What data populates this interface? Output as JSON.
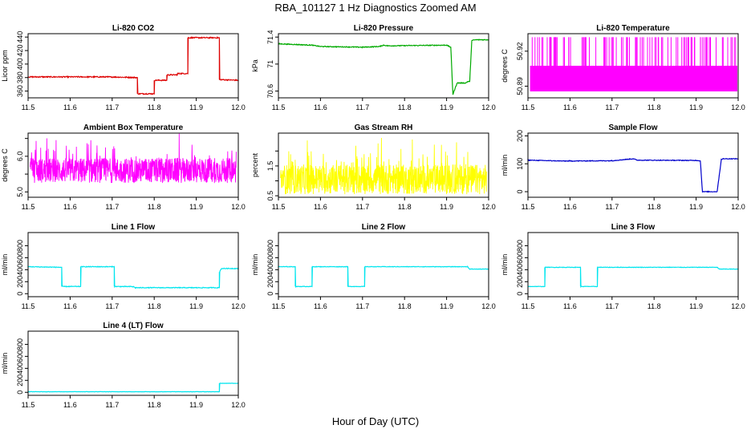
{
  "figure": {
    "title": "RBA_101127  1 Hz Diagnostics Zoomed AM",
    "xlabel": "Hour of Day (UTC)"
  },
  "chart_data": [
    {
      "type": "line",
      "title": "Li-820 CO2",
      "ylabel": "Licor ppm",
      "color": "#dd0000",
      "xlim": [
        11.5,
        12.0
      ],
      "ylim": [
        350,
        445
      ],
      "yticks": [
        360,
        380,
        400,
        420,
        440
      ],
      "xticks": [
        11.5,
        11.6,
        11.7,
        11.8,
        11.9,
        12.0
      ],
      "noise": 0.8,
      "x": [
        11.5,
        11.69,
        11.76,
        11.76,
        11.8,
        11.8,
        11.83,
        11.83,
        11.855,
        11.855,
        11.88,
        11.88,
        11.955,
        11.955,
        12.0
      ],
      "y": [
        381,
        381,
        380,
        356,
        356,
        376,
        376,
        384,
        384,
        386,
        386,
        439,
        439,
        377,
        376
      ]
    },
    {
      "type": "line",
      "title": "Li-820 Pressure",
      "ylabel": "kPa",
      "color": "#00aa00",
      "xlim": [
        11.5,
        12.0
      ],
      "ylim": [
        70.5,
        71.45
      ],
      "yticks": [
        70.6,
        71.0,
        71.4
      ],
      "xticks": [
        11.5,
        11.6,
        11.7,
        11.8,
        11.9,
        12.0
      ],
      "noise": 0.006,
      "x": [
        11.5,
        11.58,
        11.6,
        11.7,
        11.74,
        11.75,
        11.76,
        11.9,
        11.91,
        11.915,
        11.925,
        11.945,
        11.95,
        11.955,
        11.96,
        11.97,
        12.0
      ],
      "y": [
        71.3,
        71.28,
        71.26,
        71.25,
        71.26,
        71.28,
        71.27,
        71.28,
        71.25,
        70.55,
        70.72,
        70.72,
        70.74,
        70.74,
        71.35,
        71.36,
        71.36
      ]
    },
    {
      "type": "band",
      "title": "Li-820 Temperature",
      "ylabel": "degrees C",
      "color": "#ff00ff",
      "xlim": [
        11.5,
        12.0
      ],
      "ylim": [
        50.88,
        50.935
      ],
      "yticks": [
        50.89,
        50.92
      ],
      "ytick_labels": [
        "50.89",
        "50.92"
      ],
      "xticks": [
        11.5,
        11.6,
        11.7,
        11.8,
        11.9,
        12.0
      ],
      "base": [
        50.8855,
        50.9075
      ],
      "spike_top": 50.932,
      "spikes": 95
    },
    {
      "type": "noisy",
      "title": "Ambient Box Temperature",
      "ylabel": "degrees C",
      "color": "#ff00ff",
      "xlim": [
        11.5,
        12.0
      ],
      "ylim": [
        4.85,
        6.65
      ],
      "yticks": [
        5.0,
        5.5,
        6.0,
        6.5
      ],
      "ytick_labels": [
        "5.0",
        "",
        "6.0",
        ""
      ],
      "xticks": [
        11.5,
        11.6,
        11.7,
        11.8,
        11.9,
        12.0
      ],
      "center": 5.6,
      "spread": 0.35,
      "points": 900
    },
    {
      "type": "noisy",
      "title": "Gas Stream RH",
      "ylabel": "percent",
      "color": "#ffff00",
      "xlim": [
        11.5,
        12.0
      ],
      "ylim": [
        0.45,
        2.6
      ],
      "yticks": [
        0.5,
        1.0,
        1.5,
        2.0
      ],
      "ytick_labels": [
        "0.5",
        "",
        "1.5",
        ""
      ],
      "xticks": [
        11.5,
        11.6,
        11.7,
        11.8,
        11.9,
        12.0
      ],
      "center": 1.05,
      "spread": 0.5,
      "points": 900
    },
    {
      "type": "line",
      "title": "Sample Flow",
      "ylabel": "ml/min",
      "color": "#0000cc",
      "xlim": [
        11.5,
        12.0
      ],
      "ylim": [
        -20,
        210
      ],
      "yticks": [
        0,
        100,
        200
      ],
      "xticks": [
        11.5,
        11.6,
        11.7,
        11.8,
        11.9,
        12.0
      ],
      "noise": 1.2,
      "x": [
        11.5,
        11.58,
        11.6,
        11.7,
        11.75,
        11.76,
        11.9,
        11.91,
        11.915,
        11.95,
        11.96,
        11.965,
        12.0
      ],
      "y": [
        113,
        110,
        110,
        111,
        118,
        113,
        112,
        111,
        0,
        0,
        116,
        118,
        118
      ]
    },
    {
      "type": "line",
      "title": "Line 1 Flow",
      "ylabel": "ml/min",
      "color": "#00e5ee",
      "xlim": [
        11.5,
        12.0
      ],
      "ylim": [
        -50,
        1020
      ],
      "yticks": [
        0,
        200,
        400,
        600,
        800
      ],
      "xticks": [
        11.5,
        11.6,
        11.7,
        11.8,
        11.9,
        12.0
      ],
      "noise": 6,
      "x": [
        11.5,
        11.58,
        11.58,
        11.625,
        11.625,
        11.705,
        11.705,
        11.75,
        11.755,
        11.955,
        11.955,
        11.96,
        12.0
      ],
      "y": [
        450,
        440,
        120,
        120,
        450,
        450,
        120,
        118,
        100,
        100,
        360,
        420,
        420
      ]
    },
    {
      "type": "line",
      "title": "Line 2 Flow",
      "ylabel": "ml/min",
      "color": "#00e5ee",
      "xlim": [
        11.5,
        12.0
      ],
      "ylim": [
        -50,
        1020
      ],
      "yticks": [
        0,
        200,
        400,
        600,
        800
      ],
      "xticks": [
        11.5,
        11.6,
        11.7,
        11.8,
        11.9,
        12.0
      ],
      "noise": 4,
      "x": [
        11.5,
        11.54,
        11.54,
        11.58,
        11.58,
        11.665,
        11.665,
        11.705,
        11.705,
        11.95,
        11.955,
        12.0
      ],
      "y": [
        450,
        450,
        120,
        120,
        450,
        450,
        120,
        120,
        450,
        450,
        410,
        410
      ]
    },
    {
      "type": "line",
      "title": "Line 3 Flow",
      "ylabel": "ml/min",
      "color": "#00e5ee",
      "xlim": [
        11.5,
        12.0
      ],
      "ylim": [
        -50,
        1020
      ],
      "yticks": [
        0,
        200,
        400,
        600,
        800
      ],
      "xticks": [
        11.5,
        11.6,
        11.7,
        11.8,
        11.9,
        12.0
      ],
      "noise": 4,
      "x": [
        11.5,
        11.54,
        11.54,
        11.625,
        11.625,
        11.665,
        11.665,
        11.95,
        11.955,
        12.0
      ],
      "y": [
        120,
        120,
        440,
        440,
        120,
        120,
        440,
        440,
        410,
        410
      ]
    },
    {
      "type": "line",
      "title": "Line 4 (LT) Flow",
      "ylabel": "ml/min",
      "color": "#00e5ee",
      "xlim": [
        11.5,
        12.0
      ],
      "ylim": [
        -50,
        1020
      ],
      "yticks": [
        0,
        200,
        400,
        600,
        800
      ],
      "xticks": [
        11.5,
        11.6,
        11.7,
        11.8,
        11.9,
        12.0
      ],
      "noise": 2,
      "x": [
        11.5,
        11.955,
        11.955,
        12.0
      ],
      "y": [
        10,
        10,
        150,
        150
      ]
    }
  ]
}
